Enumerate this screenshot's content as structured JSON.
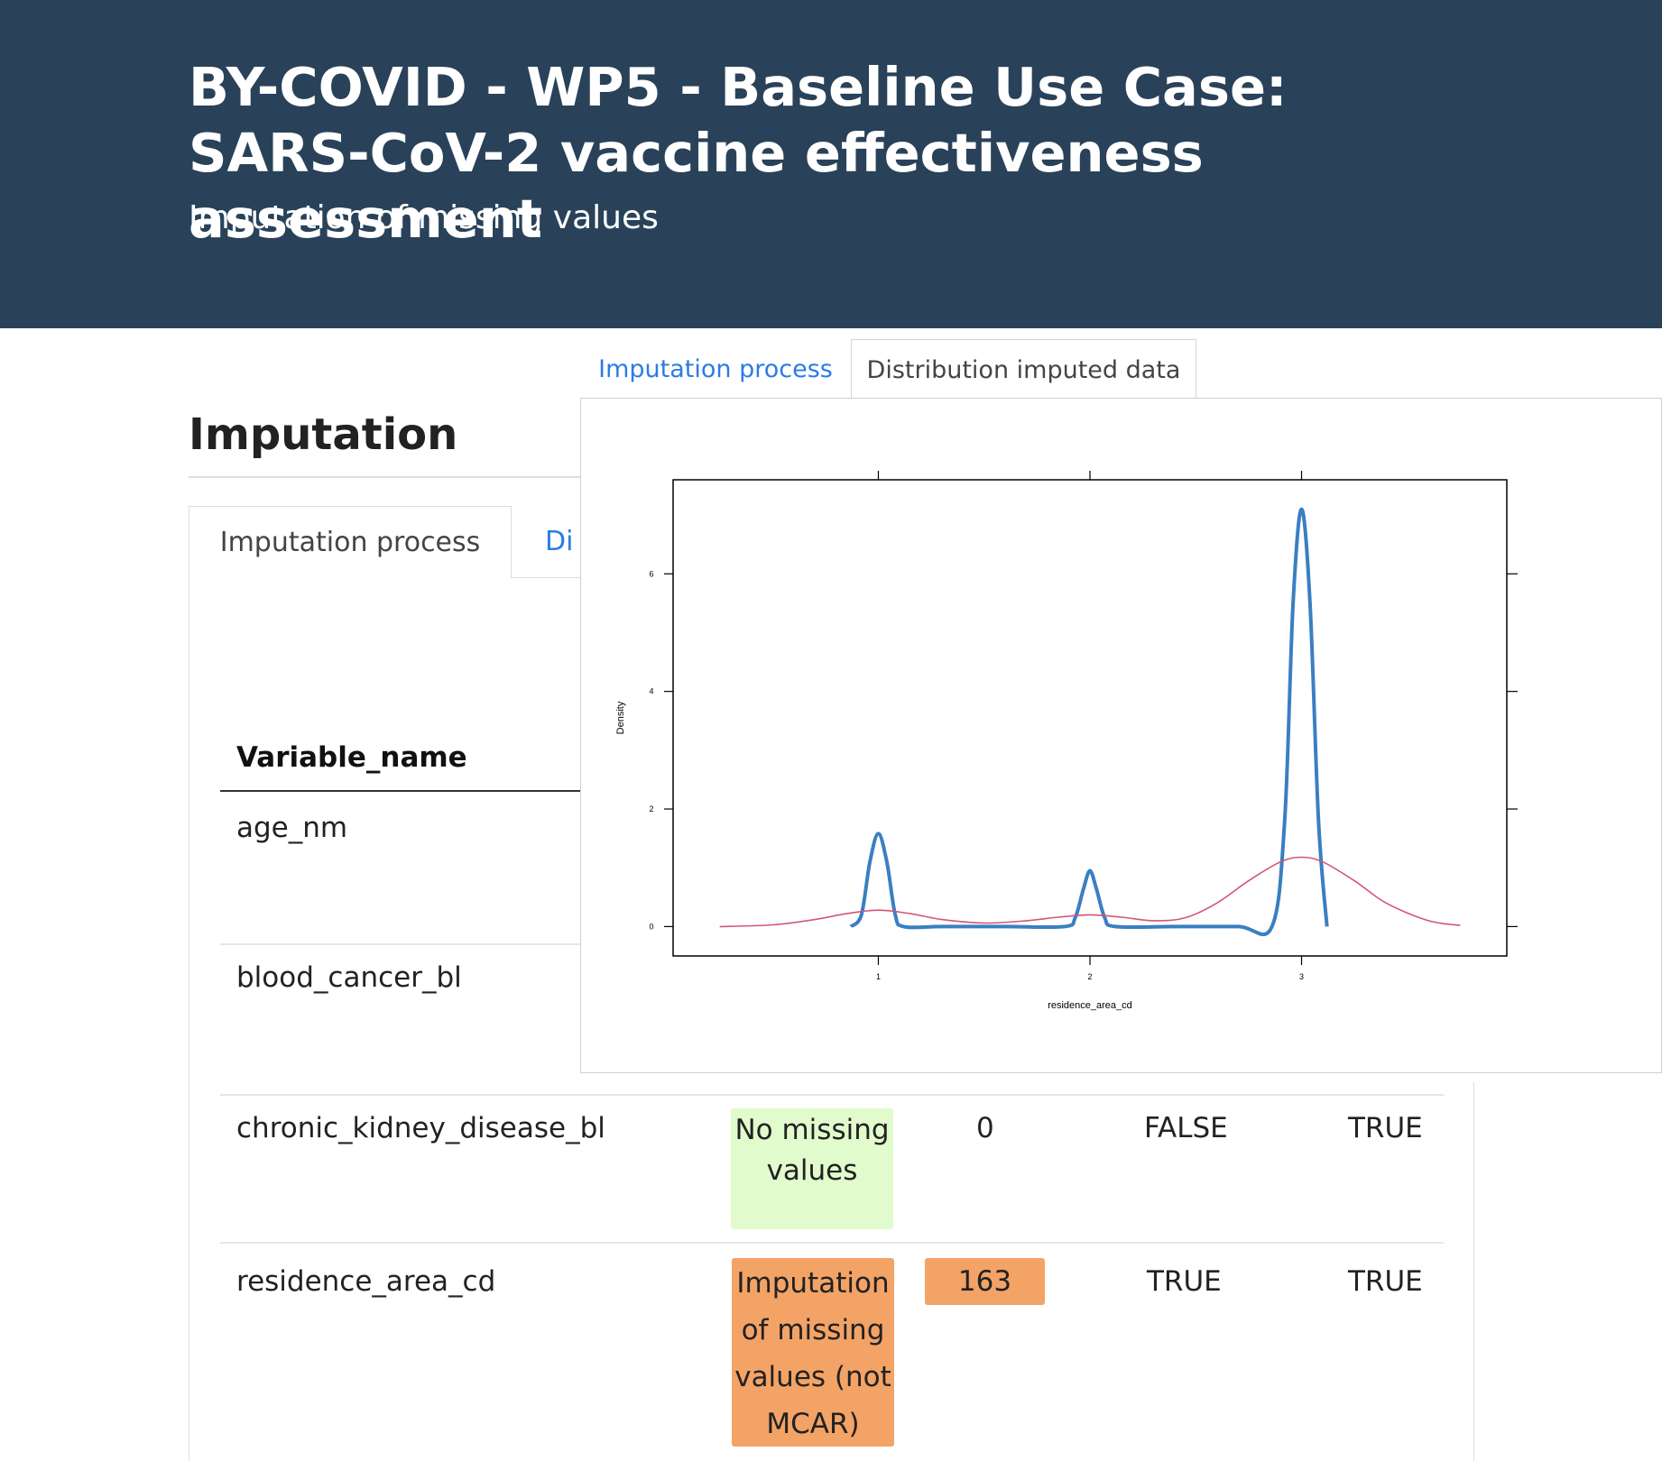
{
  "header": {
    "title": "BY-COVID - WP5 - Baseline Use Case: SARS-CoV-2 vaccine effectiveness assessment",
    "subtitle": "Imputation of missing values"
  },
  "section": {
    "title": "Imputation",
    "tabs": [
      {
        "label": "Imputation process"
      },
      {
        "label": "Di"
      }
    ]
  },
  "table": {
    "header": "Variable_name",
    "rows": [
      {
        "name": "age_nm"
      },
      {
        "name": "blood_cancer_bl"
      },
      {
        "name": "chronic_kidney_disease_bl",
        "status": "No missing values",
        "count": "0",
        "col3": "FALSE",
        "col4": "TRUE"
      },
      {
        "name": "residence_area_cd",
        "status": "Imputation of missing values (not MCAR)",
        "count": "163",
        "col3": "TRUE",
        "col4": "TRUE"
      }
    ]
  },
  "overlay": {
    "tabs": [
      {
        "label": "Imputation process"
      },
      {
        "label": "Distribution imputed data"
      }
    ]
  },
  "colors": {
    "header_bg": "#294259",
    "green_badge": "#e2fbcc",
    "orange_badge": "#f3a366",
    "observed_line": "#3a7fc1",
    "imputed_line": "#d3557a"
  },
  "chart_data": {
    "type": "line",
    "xlabel": "residence_area_cd",
    "ylabel": "Density",
    "xlim": [
      0.03,
      3.97
    ],
    "ylim": [
      -0.5,
      7.6
    ],
    "xticks": [
      1,
      2,
      3
    ],
    "yticks": [
      0,
      2,
      4,
      6
    ],
    "series": [
      {
        "color": "#3a7fc1",
        "x": [
          0.87,
          0.92,
          0.96,
          1.0,
          1.04,
          1.08,
          1.12,
          1.3,
          1.6,
          1.88,
          1.93,
          1.97,
          2.0,
          2.03,
          2.07,
          2.12,
          2.4,
          2.7,
          2.86,
          2.92,
          2.96,
          3.0,
          3.04,
          3.08,
          3.12
        ],
        "y": [
          0.0,
          0.2,
          1.1,
          1.58,
          1.1,
          0.2,
          0.0,
          0.0,
          0.0,
          0.0,
          0.15,
          0.65,
          0.95,
          0.65,
          0.15,
          0.0,
          0.0,
          0.0,
          0.0,
          1.8,
          5.5,
          7.1,
          5.5,
          1.8,
          0.0
        ]
      },
      {
        "color": "#d3557a",
        "x": [
          0.25,
          0.5,
          0.7,
          0.85,
          1.0,
          1.15,
          1.3,
          1.5,
          1.7,
          1.85,
          2.0,
          2.15,
          2.3,
          2.45,
          2.6,
          2.75,
          2.9,
          3.0,
          3.1,
          3.25,
          3.4,
          3.6,
          3.75
        ],
        "y": [
          0.0,
          0.03,
          0.12,
          0.22,
          0.28,
          0.22,
          0.12,
          0.06,
          0.1,
          0.16,
          0.2,
          0.16,
          0.1,
          0.15,
          0.4,
          0.78,
          1.1,
          1.18,
          1.1,
          0.78,
          0.4,
          0.1,
          0.02
        ]
      }
    ]
  }
}
